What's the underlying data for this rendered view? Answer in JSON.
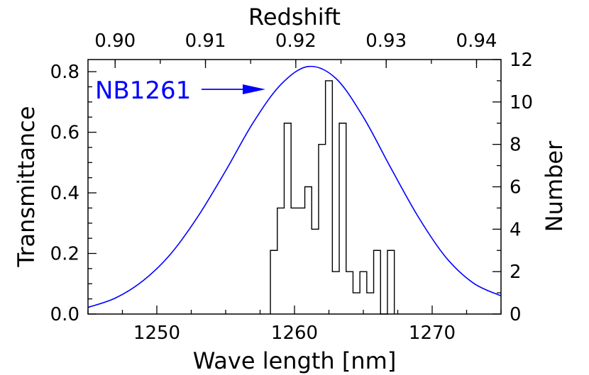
{
  "chart_data": {
    "type": "line",
    "xlabel": "Wave length [nm]",
    "x2label": "Redshift",
    "ylabel": "Transmittance",
    "y2label": "Number",
    "xlim": [
      1245,
      1275
    ],
    "ylim": [
      0,
      0.84
    ],
    "y2lim": [
      0,
      12
    ],
    "x_ticks": [
      1250,
      1260,
      1270
    ],
    "x2_ticks": [
      {
        "label": "0.90",
        "value": 0.9
      },
      {
        "label": "0.91",
        "value": 0.91
      },
      {
        "label": "0.92",
        "value": 0.92
      },
      {
        "label": "0.93",
        "value": 0.93
      },
      {
        "label": "0.94",
        "value": 0.94
      }
    ],
    "y_ticks": [
      {
        "label": "0.0",
        "value": 0.0
      },
      {
        "label": "0.2",
        "value": 0.2
      },
      {
        "label": "0.4",
        "value": 0.4
      },
      {
        "label": "0.6",
        "value": 0.6
      },
      {
        "label": "0.8",
        "value": 0.8
      }
    ],
    "y2_ticks": [
      0,
      2,
      4,
      6,
      8,
      10,
      12
    ],
    "rest_wavelength_nm": 656.3,
    "grid": false,
    "series": [
      {
        "name": "NB1261",
        "kind": "line",
        "color": "#0000ff",
        "x": [
          1245,
          1247,
          1249,
          1251,
          1253,
          1255,
          1257,
          1259,
          1261,
          1263,
          1265,
          1267,
          1269,
          1271,
          1273,
          1275
        ],
        "y": [
          0.022,
          0.053,
          0.11,
          0.198,
          0.323,
          0.473,
          0.632,
          0.757,
          0.817,
          0.778,
          0.65,
          0.482,
          0.32,
          0.187,
          0.102,
          0.06
        ]
      },
      {
        "kind": "histogram",
        "color": "#000000",
        "axis": "right",
        "bin_start": 1258.25,
        "bin_width": 0.5,
        "counts": [
          3,
          5,
          9,
          5,
          5,
          6,
          4,
          8,
          11,
          2,
          9,
          2,
          1,
          2,
          1,
          3,
          0,
          3
        ]
      }
    ],
    "annotations": [
      {
        "text": "NB1261",
        "color": "#0000ff",
        "arrow": true
      }
    ]
  }
}
